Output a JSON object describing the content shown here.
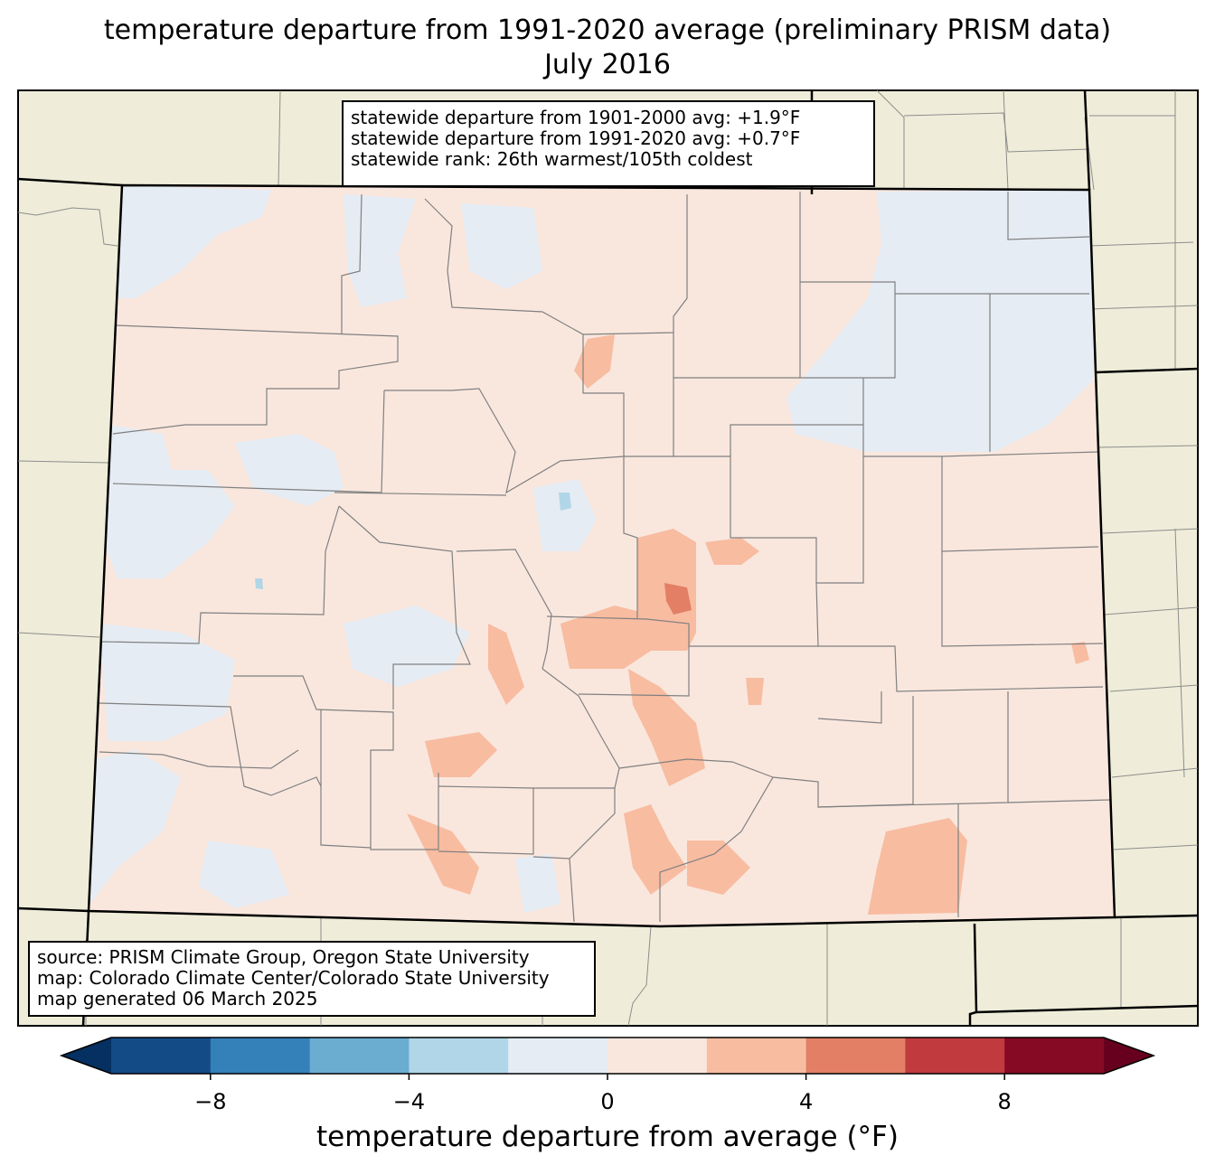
{
  "title": {
    "line1": "temperature departure from 1991-2020 average (preliminary PRISM data)",
    "line2": "July 2016"
  },
  "stats": {
    "line1": "statewide departure from 1901-2000 avg: +1.9°F",
    "line2": "statewide departure from 1991-2020 avg: +0.7°F",
    "line3": "statewide rank: 26th warmest/105th coldest"
  },
  "source": {
    "line1": "source: PRISM Climate Group, Oregon State University",
    "line2": "map: Colorado Climate Center/Colorado State University",
    "line3": "map generated 06 March 2025"
  },
  "colorbar": {
    "label": "temperature departure from average (°F)",
    "ticks": [
      "−8",
      "−4",
      "0",
      "4",
      "8"
    ],
    "tick_values": [
      -8,
      -4,
      0,
      4,
      8
    ],
    "range": [
      -10,
      10
    ],
    "step": 2,
    "colors": [
      "#053061",
      "#134b87",
      "#3480b9",
      "#6bacd1",
      "#b0d6e7",
      "#e5ecf4",
      "#f9e7de",
      "#f8bca1",
      "#e27f65",
      "#c13a3e",
      "#870a24",
      "#67001f"
    ]
  },
  "map": {
    "land_color": "#efedd9",
    "border_color": "#000000",
    "county_color": "#808080"
  }
}
